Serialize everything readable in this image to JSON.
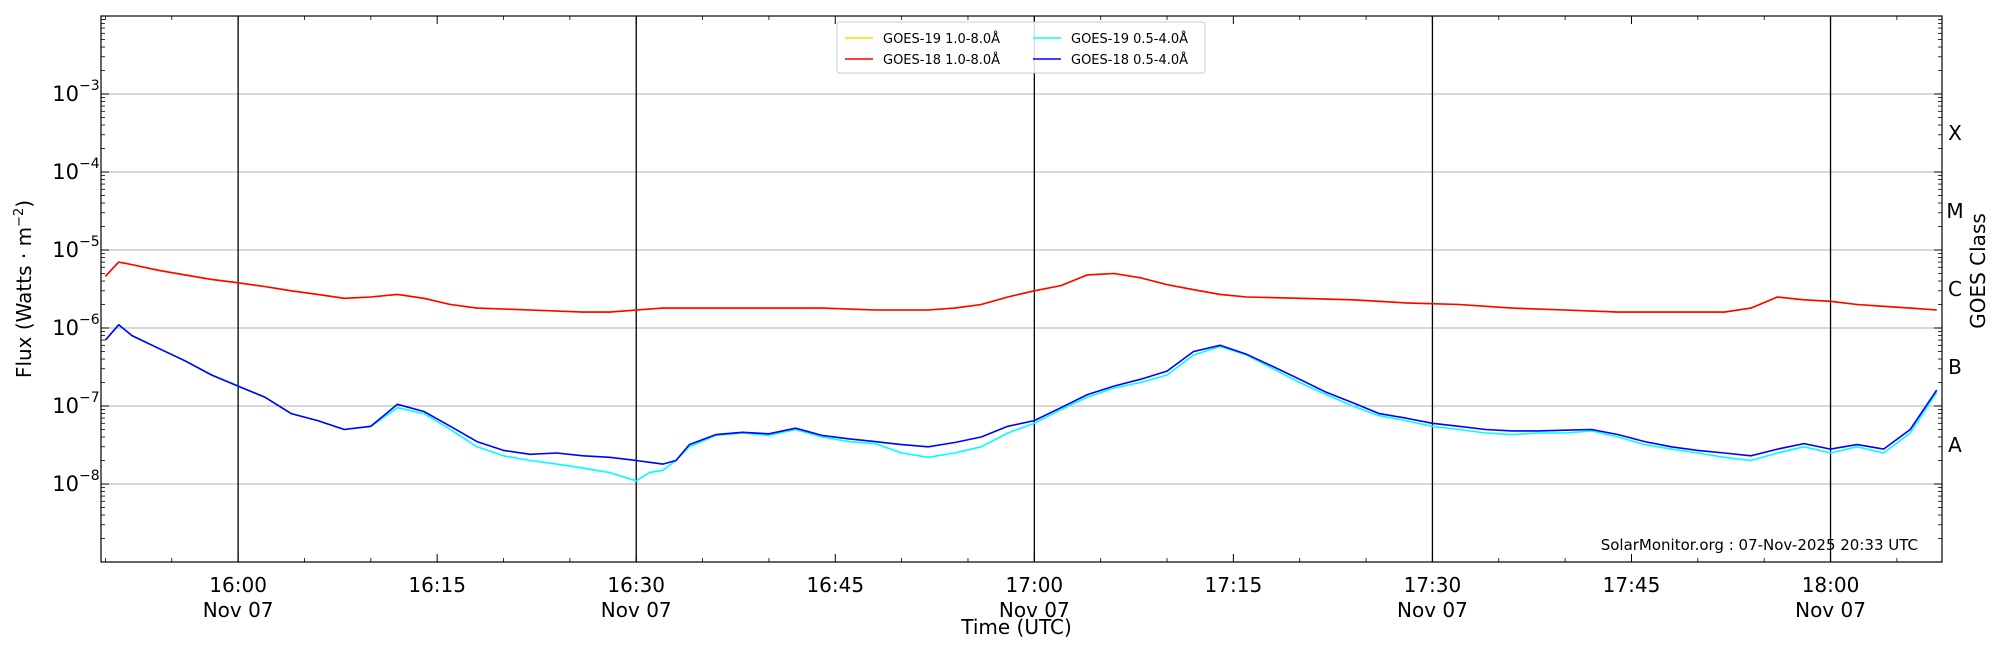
{
  "chart_data": {
    "type": "line",
    "title": "",
    "xlabel": "Time (UTC)",
    "ylabel_text": "Flux (Watts · m",
    "ylabel_sup": "−2",
    "ylabel_close": ")",
    "right_axis_label": "GOES Class",
    "xlim": [
      -0.1667,
      69.2
    ],
    "ylog": true,
    "ylim_exp": [
      -9,
      -2
    ],
    "grid": "horizontal",
    "legend_placement": "top-center",
    "x_ticks": [
      {
        "t": 5,
        "time": "16:00",
        "date": "Nov 07"
      },
      {
        "t": 12.5,
        "time": "16:15",
        "date": ""
      },
      {
        "t": 20,
        "time": "16:30",
        "date": "Nov 07"
      },
      {
        "t": 27.5,
        "time": "16:45",
        "date": ""
      },
      {
        "t": 35,
        "time": "17:00",
        "date": "Nov 07"
      },
      {
        "t": 42.5,
        "time": "17:15",
        "date": ""
      },
      {
        "t": 50,
        "time": "17:30",
        "date": "Nov 07"
      },
      {
        "t": 57.5,
        "time": "17:45",
        "date": ""
      },
      {
        "t": 65,
        "time": "18:00",
        "date": "Nov 07"
      }
    ],
    "x_tick_note": "x values are minutes after 15:50 UTC, Nov 07 (tick labels shown)",
    "vlines_at": [
      5,
      20,
      35,
      50,
      65
    ],
    "y_ticks": [
      {
        "exp": -8,
        "label": "10",
        "sup": "−8"
      },
      {
        "exp": -7,
        "label": "10",
        "sup": "−7"
      },
      {
        "exp": -6,
        "label": "10",
        "sup": "−6"
      },
      {
        "exp": -5,
        "label": "10",
        "sup": "−5"
      },
      {
        "exp": -4,
        "label": "10",
        "sup": "−4"
      },
      {
        "exp": -3,
        "label": "10",
        "sup": "−3"
      }
    ],
    "goes_classes": [
      {
        "label": "A",
        "exp": -7.5
      },
      {
        "label": "B",
        "exp": -6.5
      },
      {
        "label": "C",
        "exp": -5.5
      },
      {
        "label": "M",
        "exp": -4.5
      },
      {
        "label": "X",
        "exp": -3.5
      }
    ],
    "legend": [
      {
        "name": "GOES-19 1.0-8.0Å",
        "color": "#ffd700"
      },
      {
        "name": "GOES-19 0.5-4.0Å",
        "color": "#00ffff"
      },
      {
        "name": "GOES-18 1.0-8.0Å",
        "color": "#ff0000"
      },
      {
        "name": "GOES-18 0.5-4.0Å",
        "color": "#0000ff"
      }
    ],
    "series": [
      {
        "name": "GOES-19 1.0-8.0Å",
        "color": "#ffd700",
        "points": [
          [
            0,
            4.6e-06
          ],
          [
            0.5,
            7e-06
          ],
          [
            1,
            6.5e-06
          ],
          [
            2,
            5.5e-06
          ],
          [
            3,
            4.8e-06
          ],
          [
            4,
            4.2e-06
          ],
          [
            5,
            3.8e-06
          ],
          [
            6,
            3.4e-06
          ],
          [
            7,
            3e-06
          ],
          [
            8,
            2.7e-06
          ],
          [
            9,
            2.4e-06
          ],
          [
            10,
            2.5e-06
          ],
          [
            11,
            2.7e-06
          ],
          [
            12,
            2.4e-06
          ],
          [
            13,
            2e-06
          ],
          [
            14,
            1.8e-06
          ],
          [
            16,
            1.7e-06
          ],
          [
            18,
            1.6e-06
          ],
          [
            19,
            1.6e-06
          ],
          [
            20,
            1.7e-06
          ],
          [
            21,
            1.8e-06
          ],
          [
            23,
            1.8e-06
          ],
          [
            25,
            1.8e-06
          ],
          [
            27,
            1.8e-06
          ],
          [
            29,
            1.7e-06
          ],
          [
            31,
            1.7e-06
          ],
          [
            32,
            1.8e-06
          ],
          [
            33,
            2e-06
          ],
          [
            34,
            2.5e-06
          ],
          [
            35,
            3e-06
          ],
          [
            36,
            3.5e-06
          ],
          [
            37,
            4.8e-06
          ],
          [
            38,
            5e-06
          ],
          [
            39,
            4.4e-06
          ],
          [
            40,
            3.6e-06
          ],
          [
            41,
            3.1e-06
          ],
          [
            42,
            2.7e-06
          ],
          [
            43,
            2.5e-06
          ],
          [
            45,
            2.4e-06
          ],
          [
            47,
            2.3e-06
          ],
          [
            49,
            2.1e-06
          ],
          [
            51,
            2e-06
          ],
          [
            53,
            1.8e-06
          ],
          [
            55,
            1.7e-06
          ],
          [
            57,
            1.6e-06
          ],
          [
            59,
            1.6e-06
          ],
          [
            61,
            1.6e-06
          ],
          [
            62,
            1.8e-06
          ],
          [
            63,
            2.5e-06
          ],
          [
            64,
            2.3e-06
          ],
          [
            65,
            2.2e-06
          ],
          [
            66,
            2e-06
          ],
          [
            67,
            1.9e-06
          ],
          [
            68,
            1.8e-06
          ],
          [
            69,
            1.7e-06
          ]
        ]
      },
      {
        "name": "GOES-18 1.0-8.0Å",
        "color": "#ff0000",
        "points": [
          [
            0,
            4.6e-06
          ],
          [
            0.5,
            7e-06
          ],
          [
            1,
            6.5e-06
          ],
          [
            2,
            5.5e-06
          ],
          [
            3,
            4.8e-06
          ],
          [
            4,
            4.2e-06
          ],
          [
            5,
            3.8e-06
          ],
          [
            6,
            3.4e-06
          ],
          [
            7,
            3e-06
          ],
          [
            8,
            2.7e-06
          ],
          [
            9,
            2.4e-06
          ],
          [
            10,
            2.5e-06
          ],
          [
            11,
            2.7e-06
          ],
          [
            12,
            2.4e-06
          ],
          [
            13,
            2e-06
          ],
          [
            14,
            1.8e-06
          ],
          [
            16,
            1.7e-06
          ],
          [
            18,
            1.6e-06
          ],
          [
            19,
            1.6e-06
          ],
          [
            20,
            1.7e-06
          ],
          [
            21,
            1.8e-06
          ],
          [
            23,
            1.8e-06
          ],
          [
            25,
            1.8e-06
          ],
          [
            27,
            1.8e-06
          ],
          [
            29,
            1.7e-06
          ],
          [
            31,
            1.7e-06
          ],
          [
            32,
            1.8e-06
          ],
          [
            33,
            2e-06
          ],
          [
            34,
            2.5e-06
          ],
          [
            35,
            3e-06
          ],
          [
            36,
            3.5e-06
          ],
          [
            37,
            4.8e-06
          ],
          [
            38,
            5e-06
          ],
          [
            39,
            4.4e-06
          ],
          [
            40,
            3.6e-06
          ],
          [
            41,
            3.1e-06
          ],
          [
            42,
            2.7e-06
          ],
          [
            43,
            2.5e-06
          ],
          [
            45,
            2.4e-06
          ],
          [
            47,
            2.3e-06
          ],
          [
            49,
            2.1e-06
          ],
          [
            51,
            2e-06
          ],
          [
            53,
            1.8e-06
          ],
          [
            55,
            1.7e-06
          ],
          [
            57,
            1.6e-06
          ],
          [
            59,
            1.6e-06
          ],
          [
            61,
            1.6e-06
          ],
          [
            62,
            1.8e-06
          ],
          [
            63,
            2.5e-06
          ],
          [
            64,
            2.3e-06
          ],
          [
            65,
            2.2e-06
          ],
          [
            66,
            2e-06
          ],
          [
            67,
            1.9e-06
          ],
          [
            68,
            1.8e-06
          ],
          [
            69,
            1.7e-06
          ]
        ]
      },
      {
        "name": "GOES-19 0.5-4.0Å",
        "color": "#00ffff",
        "points": [
          [
            0,
            7e-07
          ],
          [
            0.5,
            1.1e-06
          ],
          [
            1,
            8e-07
          ],
          [
            2,
            5.5e-07
          ],
          [
            3,
            3.8e-07
          ],
          [
            4,
            2.5e-07
          ],
          [
            5,
            1.8e-07
          ],
          [
            6,
            1.3e-07
          ],
          [
            7,
            8e-08
          ],
          [
            8,
            6.5e-08
          ],
          [
            9,
            5e-08
          ],
          [
            10,
            5.5e-08
          ],
          [
            11,
            9.5e-08
          ],
          [
            12,
            8e-08
          ],
          [
            13,
            5e-08
          ],
          [
            14,
            3e-08
          ],
          [
            15,
            2.3e-08
          ],
          [
            16,
            2e-08
          ],
          [
            17,
            1.8e-08
          ],
          [
            18,
            1.6e-08
          ],
          [
            19,
            1.4e-08
          ],
          [
            20,
            1.1e-08
          ],
          [
            20.5,
            1.4e-08
          ],
          [
            21,
            1.5e-08
          ],
          [
            21.5,
            2e-08
          ],
          [
            22,
            3e-08
          ],
          [
            23,
            4.2e-08
          ],
          [
            24,
            4.5e-08
          ],
          [
            25,
            4.2e-08
          ],
          [
            26,
            5e-08
          ],
          [
            27,
            4e-08
          ],
          [
            28,
            3.5e-08
          ],
          [
            29,
            3.3e-08
          ],
          [
            30,
            2.5e-08
          ],
          [
            31,
            2.2e-08
          ],
          [
            32,
            2.5e-08
          ],
          [
            33,
            3e-08
          ],
          [
            34,
            4.5e-08
          ],
          [
            35,
            6e-08
          ],
          [
            36,
            9e-08
          ],
          [
            37,
            1.3e-07
          ],
          [
            38,
            1.7e-07
          ],
          [
            39,
            2e-07
          ],
          [
            40,
            2.5e-07
          ],
          [
            41,
            4.5e-07
          ],
          [
            42,
            5.8e-07
          ],
          [
            43,
            4.5e-07
          ],
          [
            44,
            3e-07
          ],
          [
            45,
            2e-07
          ],
          [
            46,
            1.4e-07
          ],
          [
            47,
            1e-07
          ],
          [
            48,
            7.5e-08
          ],
          [
            49,
            6.5e-08
          ],
          [
            50,
            5.5e-08
          ],
          [
            51,
            5e-08
          ],
          [
            52,
            4.5e-08
          ],
          [
            53,
            4.3e-08
          ],
          [
            54,
            4.5e-08
          ],
          [
            55,
            4.5e-08
          ],
          [
            56,
            4.8e-08
          ],
          [
            57,
            4e-08
          ],
          [
            58,
            3.2e-08
          ],
          [
            59,
            2.8e-08
          ],
          [
            60,
            2.5e-08
          ],
          [
            61,
            2.2e-08
          ],
          [
            62,
            2e-08
          ],
          [
            63,
            2.5e-08
          ],
          [
            64,
            3e-08
          ],
          [
            65,
            2.5e-08
          ],
          [
            66,
            3e-08
          ],
          [
            67,
            2.5e-08
          ],
          [
            68,
            4.5e-08
          ],
          [
            69,
            1.5e-07
          ]
        ]
      },
      {
        "name": "GOES-18 0.5-4.0Å",
        "color": "#0000ff",
        "points": [
          [
            0,
            7e-07
          ],
          [
            0.5,
            1.1e-06
          ],
          [
            1,
            8e-07
          ],
          [
            2,
            5.5e-07
          ],
          [
            3,
            3.8e-07
          ],
          [
            4,
            2.5e-07
          ],
          [
            5,
            1.8e-07
          ],
          [
            6,
            1.3e-07
          ],
          [
            7,
            8e-08
          ],
          [
            8,
            6.5e-08
          ],
          [
            9,
            5e-08
          ],
          [
            10,
            5.5e-08
          ],
          [
            11,
            1.05e-07
          ],
          [
            12,
            8.5e-08
          ],
          [
            13,
            5.5e-08
          ],
          [
            14,
            3.5e-08
          ],
          [
            15,
            2.7e-08
          ],
          [
            16,
            2.4e-08
          ],
          [
            17,
            2.5e-08
          ],
          [
            18,
            2.3e-08
          ],
          [
            19,
            2.2e-08
          ],
          [
            20,
            2e-08
          ],
          [
            20.5,
            1.9e-08
          ],
          [
            21,
            1.8e-08
          ],
          [
            21.5,
            2e-08
          ],
          [
            22,
            3.2e-08
          ],
          [
            23,
            4.3e-08
          ],
          [
            24,
            4.6e-08
          ],
          [
            25,
            4.4e-08
          ],
          [
            26,
            5.2e-08
          ],
          [
            27,
            4.2e-08
          ],
          [
            28,
            3.8e-08
          ],
          [
            29,
            3.5e-08
          ],
          [
            30,
            3.2e-08
          ],
          [
            31,
            3e-08
          ],
          [
            32,
            3.4e-08
          ],
          [
            33,
            4e-08
          ],
          [
            34,
            5.5e-08
          ],
          [
            35,
            6.5e-08
          ],
          [
            36,
            9.5e-08
          ],
          [
            37,
            1.4e-07
          ],
          [
            38,
            1.8e-07
          ],
          [
            39,
            2.2e-07
          ],
          [
            40,
            2.8e-07
          ],
          [
            41,
            5e-07
          ],
          [
            42,
            6e-07
          ],
          [
            43,
            4.6e-07
          ],
          [
            44,
            3.2e-07
          ],
          [
            45,
            2.2e-07
          ],
          [
            46,
            1.5e-07
          ],
          [
            47,
            1.1e-07
          ],
          [
            48,
            8e-08
          ],
          [
            49,
            7e-08
          ],
          [
            50,
            6e-08
          ],
          [
            51,
            5.5e-08
          ],
          [
            52,
            5e-08
          ],
          [
            53,
            4.8e-08
          ],
          [
            54,
            4.8e-08
          ],
          [
            55,
            4.9e-08
          ],
          [
            56,
            5e-08
          ],
          [
            57,
            4.3e-08
          ],
          [
            58,
            3.5e-08
          ],
          [
            59,
            3e-08
          ],
          [
            60,
            2.7e-08
          ],
          [
            61,
            2.5e-08
          ],
          [
            62,
            2.3e-08
          ],
          [
            63,
            2.8e-08
          ],
          [
            64,
            3.3e-08
          ],
          [
            65,
            2.8e-08
          ],
          [
            66,
            3.2e-08
          ],
          [
            67,
            2.8e-08
          ],
          [
            68,
            5e-08
          ],
          [
            69,
            1.6e-07
          ]
        ]
      }
    ]
  },
  "footer": {
    "credit": "SolarMonitor.org : 07-Nov-2025 20:33 UTC"
  }
}
